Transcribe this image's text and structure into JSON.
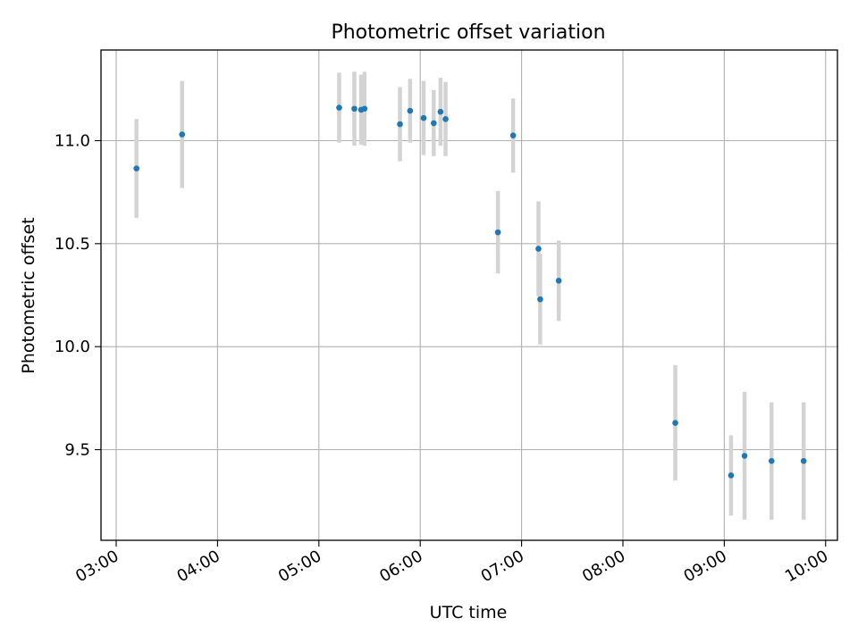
{
  "chart_data": {
    "type": "scatter",
    "title": "Photometric offset variation",
    "xlabel": "UTC time",
    "ylabel": "Photometric offset",
    "x_tick_labels": [
      "03:00",
      "04:00",
      "05:00",
      "06:00",
      "07:00",
      "08:00",
      "09:00",
      "10:00"
    ],
    "y_tick_labels": [
      "9.5",
      "10.0",
      "10.5",
      "11.0"
    ],
    "y_ticks": [
      9.5,
      10.0,
      10.5,
      11.0
    ],
    "xlim": [
      "02:51",
      "10:07"
    ],
    "ylim": [
      9.06,
      11.44
    ],
    "grid": true,
    "marker_color": "#1f77b4",
    "errorbar_color": "#d3d3d3",
    "points": [
      {
        "x": "03:12",
        "y": 10.865,
        "err": 0.24
      },
      {
        "x": "03:39",
        "y": 11.03,
        "err": 0.26
      },
      {
        "x": "05:12",
        "y": 11.16,
        "err": 0.17
      },
      {
        "x": "05:21",
        "y": 11.155,
        "err": 0.18
      },
      {
        "x": "05:25",
        "y": 11.15,
        "err": 0.17
      },
      {
        "x": "05:27",
        "y": 11.155,
        "err": 0.18
      },
      {
        "x": "05:48",
        "y": 11.08,
        "err": 0.18
      },
      {
        "x": "05:54",
        "y": 11.145,
        "err": 0.155
      },
      {
        "x": "06:02",
        "y": 11.11,
        "err": 0.18
      },
      {
        "x": "06:08",
        "y": 11.085,
        "err": 0.16
      },
      {
        "x": "06:12",
        "y": 11.14,
        "err": 0.165
      },
      {
        "x": "06:15",
        "y": 11.105,
        "err": 0.18
      },
      {
        "x": "06:46",
        "y": 10.555,
        "err": 0.2
      },
      {
        "x": "06:55",
        "y": 11.025,
        "err": 0.18
      },
      {
        "x": "07:10",
        "y": 10.475,
        "err": 0.23
      },
      {
        "x": "07:11",
        "y": 10.23,
        "err": 0.22
      },
      {
        "x": "07:22",
        "y": 10.32,
        "err": 0.195
      },
      {
        "x": "08:31",
        "y": 9.63,
        "err": 0.28
      },
      {
        "x": "09:04",
        "y": 9.375,
        "err": 0.195
      },
      {
        "x": "09:12",
        "y": 9.47,
        "err": 0.31
      },
      {
        "x": "09:28",
        "y": 9.445,
        "err": 0.285
      },
      {
        "x": "09:47",
        "y": 9.445,
        "err": 0.285
      }
    ]
  }
}
